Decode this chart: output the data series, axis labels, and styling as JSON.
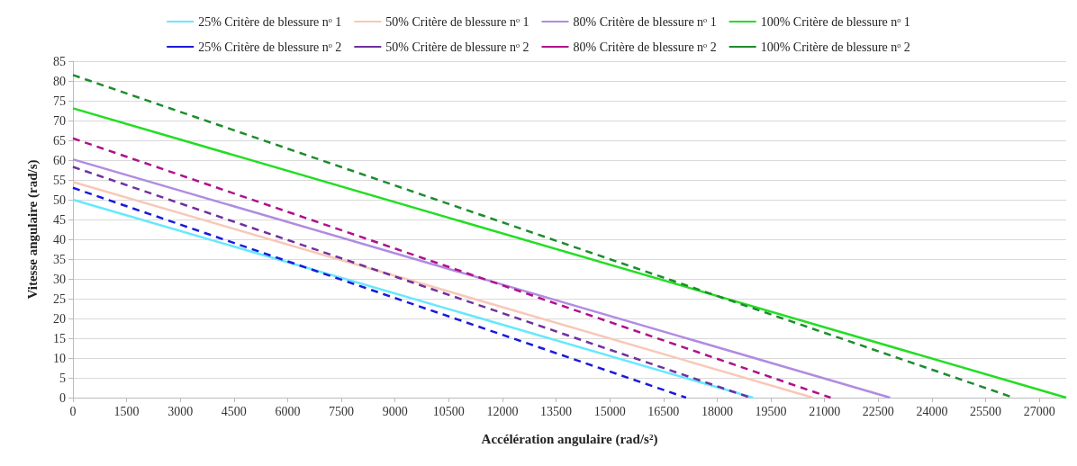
{
  "chart_data": {
    "type": "line",
    "xlabel": "Accélération angulaire (rad/s²)",
    "ylabel": "Vitesse angulaire (rad/s)",
    "xlim": [
      0,
      27750
    ],
    "xticks": [
      0,
      1500,
      3000,
      4500,
      6000,
      7500,
      9000,
      10500,
      12000,
      13500,
      15000,
      16500,
      18000,
      19500,
      21000,
      22500,
      24000,
      25500,
      27000
    ],
    "ylim": [
      0,
      85
    ],
    "yticks": [
      0,
      5,
      10,
      15,
      20,
      25,
      30,
      35,
      40,
      45,
      50,
      55,
      60,
      65,
      70,
      75,
      80,
      85
    ],
    "grid": "y",
    "legend": "top",
    "marker": "none",
    "series": [
      {
        "name": "25% Critère de blessure nᵒ 1",
        "color": "#66e8ff",
        "line_style": "solid",
        "x": [
          0,
          19000
        ],
        "values": [
          50,
          0
        ]
      },
      {
        "name": "50% Critère de blessure nᵒ 1",
        "color": "#f8c8b8",
        "line_style": "solid",
        "x": [
          0,
          20670
        ],
        "values": [
          54.5,
          0
        ]
      },
      {
        "name": "80% Critère de blessure nᵒ 1",
        "color": "#b08ce0",
        "line_style": "solid",
        "x": [
          0,
          22830
        ],
        "values": [
          60.2,
          0
        ]
      },
      {
        "name": "100% Critère de blessure nᵒ 1",
        "color": "#22dd22",
        "line_style": "solid",
        "x": [
          0,
          27750
        ],
        "values": [
          73.1,
          0
        ]
      },
      {
        "name": "25% Critère de blessure nᵒ 2",
        "color": "#1a1adb",
        "line_style": "dashed",
        "x": [
          0,
          17130
        ],
        "values": [
          53,
          0
        ]
      },
      {
        "name": "50% Critère de blessure nᵒ 2",
        "color": "#7030a0",
        "line_style": "dashed",
        "x": [
          0,
          18930
        ],
        "values": [
          58.3,
          0
        ]
      },
      {
        "name": "80% Critère de blessure nᵒ 2",
        "color": "#b0108c",
        "line_style": "dashed",
        "x": [
          0,
          21170
        ],
        "values": [
          65.5,
          0
        ]
      },
      {
        "name": "100% Critère de blessure nᵒ 2",
        "color": "#1e8c2e",
        "line_style": "dashed",
        "x": [
          0,
          26280
        ],
        "values": [
          81.5,
          0
        ]
      }
    ]
  }
}
